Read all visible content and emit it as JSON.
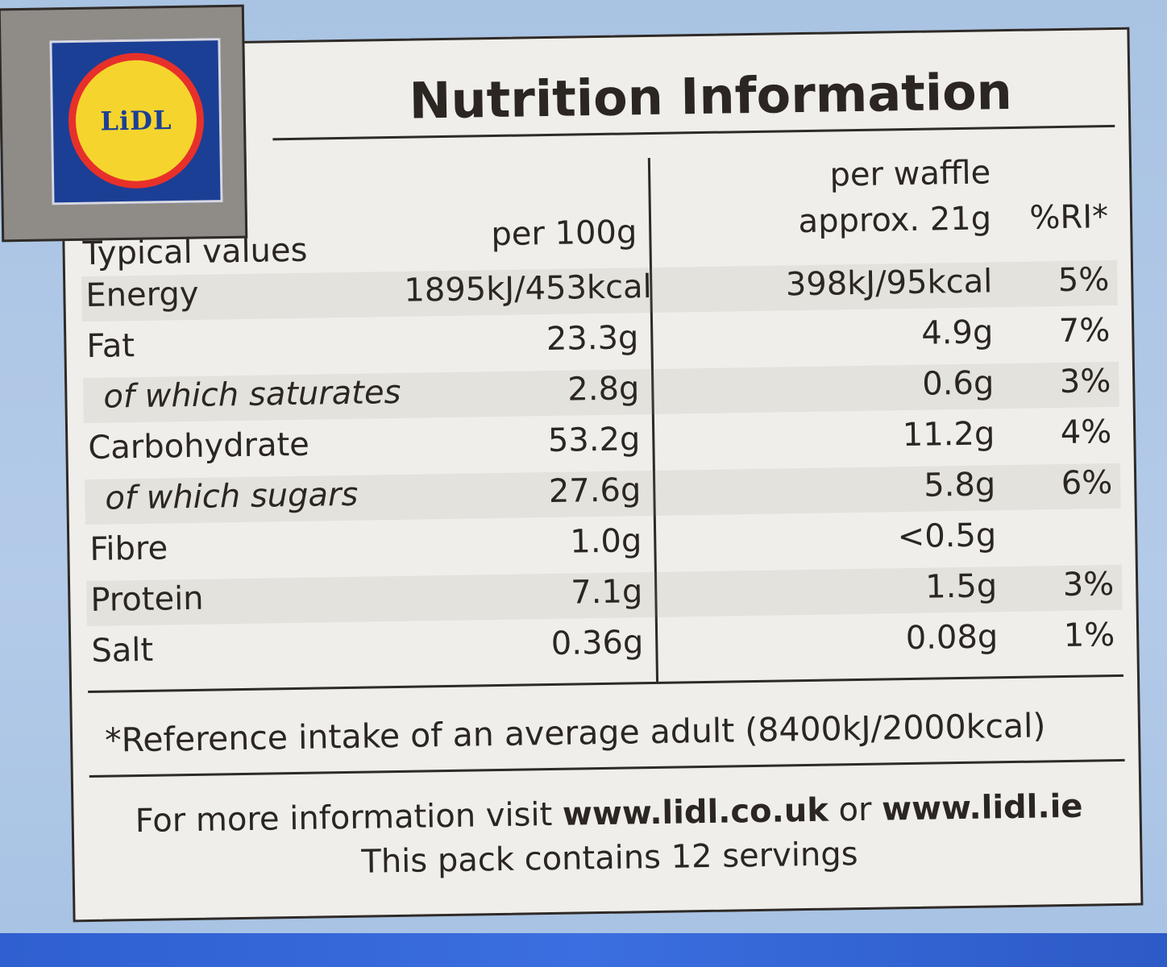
{
  "brand": {
    "logo_text": "LiDL"
  },
  "title": "Nutrition Information",
  "headers": {
    "typical_values": "Typical values",
    "per_100g": "per 100g",
    "per_waffle_line1": "per waffle",
    "per_waffle_line2": "approx. 21g",
    "ri": "%RI*"
  },
  "rows": [
    {
      "name": "Energy",
      "per100": "1895kJ/453kcal",
      "perServing": "398kJ/95kcal",
      "ri": "5%"
    },
    {
      "name": "Fat",
      "per100": "23.3g",
      "perServing": "4.9g",
      "ri": "7%"
    },
    {
      "name": "of which saturates",
      "per100": "2.8g",
      "perServing": "0.6g",
      "ri": "3%"
    },
    {
      "name": "Carbohydrate",
      "per100": "53.2g",
      "perServing": "11.2g",
      "ri": "4%"
    },
    {
      "name": "of which sugars",
      "per100": "27.6g",
      "perServing": "5.8g",
      "ri": "6%"
    },
    {
      "name": "Fibre",
      "per100": "1.0g",
      "perServing": "<0.5g",
      "ri": ""
    },
    {
      "name": "Protein",
      "per100": "7.1g",
      "perServing": "1.5g",
      "ri": "3%"
    },
    {
      "name": "Salt",
      "per100": "0.36g",
      "perServing": "0.08g",
      "ri": "1%"
    }
  ],
  "reference_note": "*Reference intake of an average adult (8400kJ/2000kcal)",
  "footer": {
    "info_prefix": "For more information visit",
    "url_uk": "www.lidl.co.uk",
    "or": "or",
    "url_ie": "www.lidl.ie",
    "servings": "This pack contains 12 servings"
  },
  "colors": {
    "background": "#b3cbe8",
    "label_bg": "#efeeea",
    "logo_blue": "#1b3f95",
    "logo_red": "#e8302a",
    "logo_yellow": "#f5d52d",
    "ink": "#2b2622"
  }
}
